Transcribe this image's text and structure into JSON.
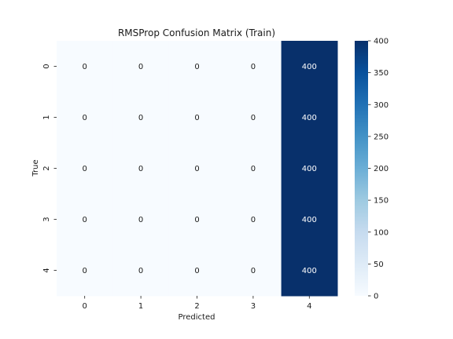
{
  "chart_data": {
    "type": "heatmap",
    "title": "RMSProp Confusion Matrix (Train)",
    "xlabel": "Predicted",
    "ylabel": "True",
    "x_categories": [
      "0",
      "1",
      "2",
      "3",
      "4"
    ],
    "y_categories": [
      "0",
      "1",
      "2",
      "3",
      "4"
    ],
    "values": [
      [
        0,
        0,
        0,
        0,
        400
      ],
      [
        0,
        0,
        0,
        0,
        400
      ],
      [
        0,
        0,
        0,
        0,
        400
      ],
      [
        0,
        0,
        0,
        0,
        400
      ],
      [
        0,
        0,
        0,
        0,
        400
      ]
    ],
    "colormap": "Blues",
    "color_range": [
      0,
      400
    ],
    "colorbar_ticks": [
      0,
      50,
      100,
      150,
      200,
      250,
      300,
      350,
      400
    ],
    "colors": {
      "low": "#f7fbff",
      "high": "#08306b"
    },
    "annotations": true,
    "grid": false
  }
}
